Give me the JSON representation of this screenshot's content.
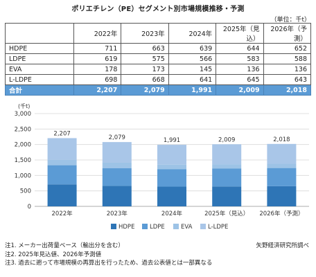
{
  "title": "ポリエチレン（PE）セグメント別市場規模推移・予測",
  "unit_label": "（単位：千t）",
  "table": {
    "headers": [
      "",
      "2022年",
      "2023年",
      "2024年",
      "2025年（見込）",
      "2026年（予測）"
    ],
    "rows": [
      {
        "label": "HDPE",
        "values": [
          "711",
          "663",
          "639",
          "644",
          "652"
        ]
      },
      {
        "label": "LDPE",
        "values": [
          "619",
          "575",
          "566",
          "583",
          "588"
        ]
      },
      {
        "label": "EVA",
        "values": [
          "178",
          "173",
          "145",
          "136",
          "136"
        ]
      },
      {
        "label": "L-LDPE",
        "values": [
          "698",
          "668",
          "641",
          "645",
          "643"
        ]
      }
    ],
    "total": {
      "label": "合計",
      "values": [
        "2,207",
        "2,079",
        "1,991",
        "2,009",
        "2,018"
      ]
    }
  },
  "chart_data": {
    "type": "bar",
    "stacked": true,
    "categories": [
      "2022年",
      "2023年",
      "2024年",
      "2025年（見込）",
      "2026年（予測）"
    ],
    "series": [
      {
        "name": "HDPE",
        "values": [
          711,
          663,
          639,
          644,
          652
        ],
        "color": "#2e75b6"
      },
      {
        "name": "LDPE",
        "values": [
          619,
          575,
          566,
          583,
          588
        ],
        "color": "#5b9bd5"
      },
      {
        "name": "EVA",
        "values": [
          178,
          173,
          145,
          136,
          136
        ],
        "color": "#9dc3e6"
      },
      {
        "name": "L-LDPE",
        "values": [
          698,
          668,
          641,
          645,
          643
        ],
        "color": "#a9c6e8"
      }
    ],
    "totals": [
      2207,
      2079,
      1991,
      2009,
      2018
    ],
    "total_labels": [
      "2,207",
      "2,079",
      "1,991",
      "2,009",
      "2,018"
    ],
    "ylabel": "(千t)",
    "ylim": [
      0,
      3000
    ],
    "yticks": [
      0,
      500,
      1000,
      1500,
      2000,
      2500,
      3000
    ],
    "ytick_labels": [
      "0",
      "500",
      "1,000",
      "1,500",
      "2,000",
      "2,500",
      "3,000"
    ],
    "grid": true,
    "legend_position": "bottom"
  },
  "notes": [
    "注1. メーカー出荷量ベース（輸出分を含む）",
    "注2. 2025年見込値、2026年予測値",
    "注3. 過去に遡って市場規模の再算出を行ったため、過去公表値とは一部異なる"
  ],
  "source": "矢野経済研究所調べ"
}
